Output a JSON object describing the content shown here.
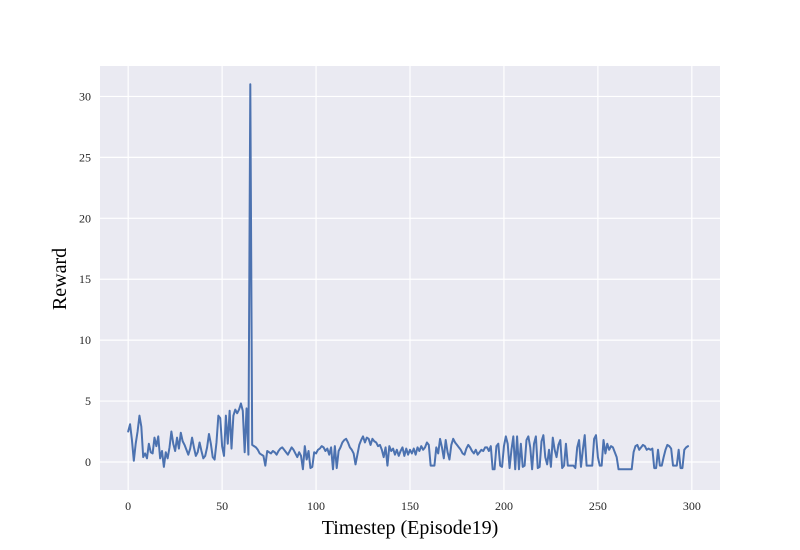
{
  "chart_data": {
    "type": "line",
    "title": "",
    "xlabel": "Timestep (Episode19)",
    "ylabel": "Reward",
    "xlim": [
      -15,
      315
    ],
    "ylim": [
      -2.3,
      32.5
    ],
    "xticks": [
      0,
      50,
      100,
      150,
      200,
      250,
      300
    ],
    "yticks": [
      0,
      5,
      10,
      15,
      20,
      25,
      30
    ],
    "grid": true,
    "legend": "none",
    "colors": {
      "background": "#EAEAF2",
      "grid": "#FFFFFF",
      "line": "#4C72B0"
    },
    "series": [
      {
        "y": [
          2.5,
          3.1,
          1.8,
          0.1,
          1.5,
          2.5,
          3.8,
          2.9,
          0.4,
          0.7,
          0.3,
          1.5,
          0.8,
          0.7,
          2.0,
          1.3,
          2.1,
          0.3,
          0.9,
          -0.4,
          0.8,
          0.3,
          1.2,
          2.5,
          1.5,
          0.9,
          2.0,
          1.1,
          2.4,
          1.7,
          1.4,
          1.0,
          0.6,
          1.1,
          2.0,
          1.2,
          0.5,
          0.8,
          1.6,
          0.9,
          0.3,
          0.5,
          1.2,
          2.3,
          1.5,
          0.4,
          0.2,
          1.6,
          3.8,
          3.6,
          1.3,
          0.5,
          3.8,
          1.5,
          4.2,
          1.1,
          3.8,
          4.3,
          4.0,
          4.3,
          4.8,
          4.2,
          0.8,
          4.4,
          0.6,
          31.0,
          1.4,
          1.3,
          1.2,
          1.0,
          0.7,
          0.6,
          0.5,
          -0.3,
          0.9,
          0.8,
          0.7,
          0.9,
          0.8,
          0.6,
          0.9,
          1.1,
          1.2,
          1.0,
          0.8,
          0.6,
          0.9,
          1.2,
          1.0,
          0.7,
          0.4,
          0.8,
          0.5,
          -0.6,
          1.3,
          0.2,
          0.9,
          -0.5,
          -0.4,
          0.8,
          0.7,
          1.0,
          1.1,
          1.3,
          1.2,
          0.9,
          1.1,
          0.6,
          1.2,
          -0.6,
          1.3,
          -0.5,
          0.9,
          1.2,
          1.6,
          1.8,
          1.9,
          1.6,
          1.2,
          1.0,
          0.7,
          -0.2,
          0.6,
          1.4,
          1.8,
          2.1,
          1.6,
          2.0,
          1.9,
          1.4,
          1.9,
          1.7,
          1.6,
          1.3,
          1.4,
          1.0,
          0.4,
          1.2,
          -0.3,
          1.3,
          0.9,
          1.1,
          0.6,
          1.0,
          0.5,
          0.9,
          1.2,
          0.5,
          1.1,
          0.6,
          1.0,
          0.7,
          1.1,
          0.6,
          1.2,
          0.9,
          1.3,
          1.0,
          1.2,
          1.6,
          1.4,
          -0.3,
          -0.3,
          -0.3,
          1.2,
          0.7,
          1.9,
          1.2,
          0.3,
          1.8,
          0.8,
          0.2,
          1.4,
          1.9,
          1.6,
          1.4,
          1.2,
          1.0,
          0.7,
          0.6,
          1.1,
          1.4,
          1.2,
          0.9,
          0.7,
          1.0,
          0.6,
          0.8,
          1.0,
          0.9,
          1.2,
          1.2,
          0.9,
          1.3,
          -0.6,
          -0.6,
          1.3,
          1.5,
          -0.3,
          -0.4,
          1.3,
          2.1,
          1.5,
          -0.5,
          1.0,
          2.1,
          -0.6,
          2.1,
          -0.6,
          1.5,
          -0.4,
          -0.3,
          1.8,
          2.1,
          1.2,
          -0.6,
          1.5,
          2.1,
          -0.5,
          -0.4,
          1.7,
          2.2,
          0.4,
          -0.2,
          1.0,
          -0.4,
          2.0,
          1.0,
          0.4,
          1.4,
          1.8,
          -0.5,
          -0.3,
          1.5,
          -0.3,
          -0.3,
          -0.3,
          -0.3,
          -0.5,
          1.2,
          1.8,
          -0.4,
          1.0,
          2.2,
          -0.3,
          -0.3,
          -0.3,
          -0.3,
          1.9,
          2.2,
          0.4,
          -0.3,
          -0.3,
          1.8,
          0.7,
          1.5,
          1.0,
          1.3,
          1.2,
          0.8,
          0.4,
          -0.6,
          -0.6,
          -0.6,
          -0.6,
          -0.6,
          -0.6,
          -0.6,
          -0.6,
          0.8,
          1.3,
          1.4,
          1.0,
          1.2,
          1.4,
          1.3,
          1.0,
          1.1,
          1.0,
          1.1,
          -0.5,
          -0.5,
          1.0,
          -0.3,
          -0.3,
          0.4,
          1.0,
          1.4,
          1.3,
          1.1,
          -0.3,
          -0.3,
          -0.3,
          1.0,
          -0.5,
          -0.5,
          1.0,
          1.2,
          1.3
        ]
      }
    ]
  }
}
